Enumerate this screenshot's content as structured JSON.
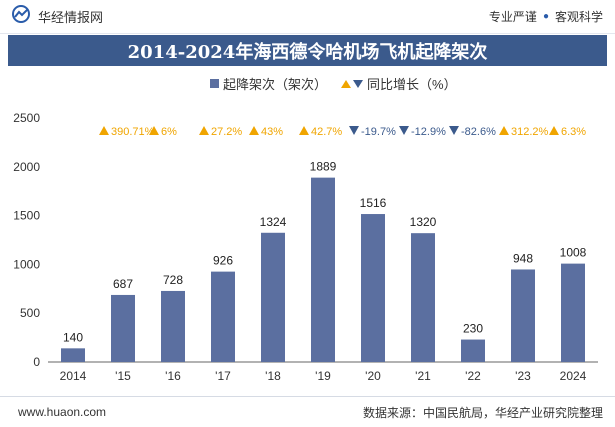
{
  "header": {
    "brand": "华经情报网",
    "slogan_left": "专业严谨",
    "slogan_right": "客观科学"
  },
  "colors": {
    "bar": "#5b6fa0",
    "up": "#f0a500",
    "down": "#3b5a8c",
    "title_bg": "#3b5a8c"
  },
  "chart_data": {
    "type": "bar",
    "title": "2014-2024年海西德令哈机场飞机起降架次",
    "categories": [
      "2014",
      "'15",
      "'16",
      "'17",
      "'18",
      "'19",
      "'20",
      "'21",
      "'22",
      "'23",
      "2024"
    ],
    "series": [
      {
        "name": "起降架次（架次）",
        "values": [
          140,
          687,
          728,
          926,
          1324,
          1889,
          1516,
          1320,
          230,
          948,
          1008
        ]
      },
      {
        "name": "同比增长（%）",
        "values": [
          null,
          390.71,
          6,
          27.2,
          43,
          42.7,
          -19.7,
          -12.9,
          -82.6,
          312.2,
          6.3
        ],
        "labels": [
          "",
          "390.71%",
          "6%",
          "27.2%",
          "43%",
          "42.7%",
          "-19.7%",
          "-12.9%",
          "-82.6%",
          "312.2%",
          "6.3%"
        ]
      }
    ],
    "ylim": [
      0,
      2500
    ],
    "yticks": [
      0,
      500,
      1000,
      1500,
      2000,
      2500
    ],
    "legend_position": "top-center",
    "grid": false
  },
  "footer": {
    "website": "www.huaon.com",
    "source": "数据来源：中国民航局，华经产业研究院整理"
  }
}
